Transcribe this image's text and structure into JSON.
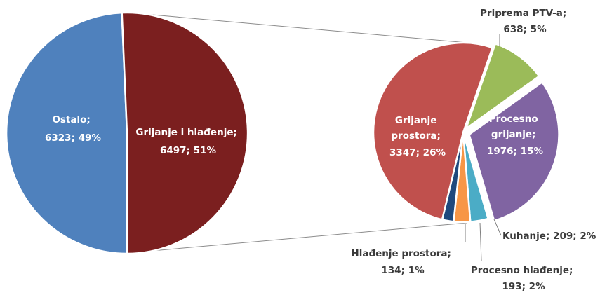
{
  "chart_data": [
    {
      "type": "pie",
      "slices": [
        {
          "name": "Ostalo",
          "value": 6323,
          "percent": "49%",
          "color": "#4f81bd"
        },
        {
          "name": "Grijanje i hlađenje",
          "value": 6497,
          "percent": "51%",
          "color": "#7b1f1f"
        }
      ]
    },
    {
      "type": "pie",
      "slices": [
        {
          "name": "Priprema PTV-a",
          "value": 638,
          "percent": "5%",
          "color": "#9bbb59"
        },
        {
          "name": "Procesno grijanje",
          "value": 1976,
          "percent": "15%",
          "color": "#8064a2"
        },
        {
          "name": "Kuhanje",
          "value": 209,
          "percent": "2%",
          "color": "#4bacc6"
        },
        {
          "name": "Procesno hlađenje",
          "value": 193,
          "percent": "2%",
          "color": "#f79646"
        },
        {
          "name": "Hlađenje prostora",
          "value": 134,
          "percent": "1%",
          "color": "#1f497d"
        },
        {
          "name": "Grijanje prostora",
          "value": 3347,
          "percent": "26%",
          "color": "#c0504d"
        }
      ]
    }
  ],
  "labels": {
    "ostalo": [
      "Ostalo;",
      "6323; 49%"
    ],
    "grijanje_hladenje": [
      "Grijanje i hlađenje;",
      "6497; 51%"
    ],
    "grijanje_prostora": [
      "Grijanje",
      "prostora;",
      "3347; 26%"
    ],
    "procesno_grijanje": [
      "Procesno",
      "grijanje;",
      "1976; 15%"
    ],
    "priprema_ptv": [
      "Priprema PTV-a;",
      "638; 5%"
    ],
    "kuhanje": [
      "Kuhanje; 209; 2%"
    ],
    "hladenje_prostora": [
      "Hlađenje prostora;",
      "134; 1%"
    ],
    "procesno_hladenje": [
      "Procesno hlađenje;",
      "193; 2%"
    ]
  }
}
